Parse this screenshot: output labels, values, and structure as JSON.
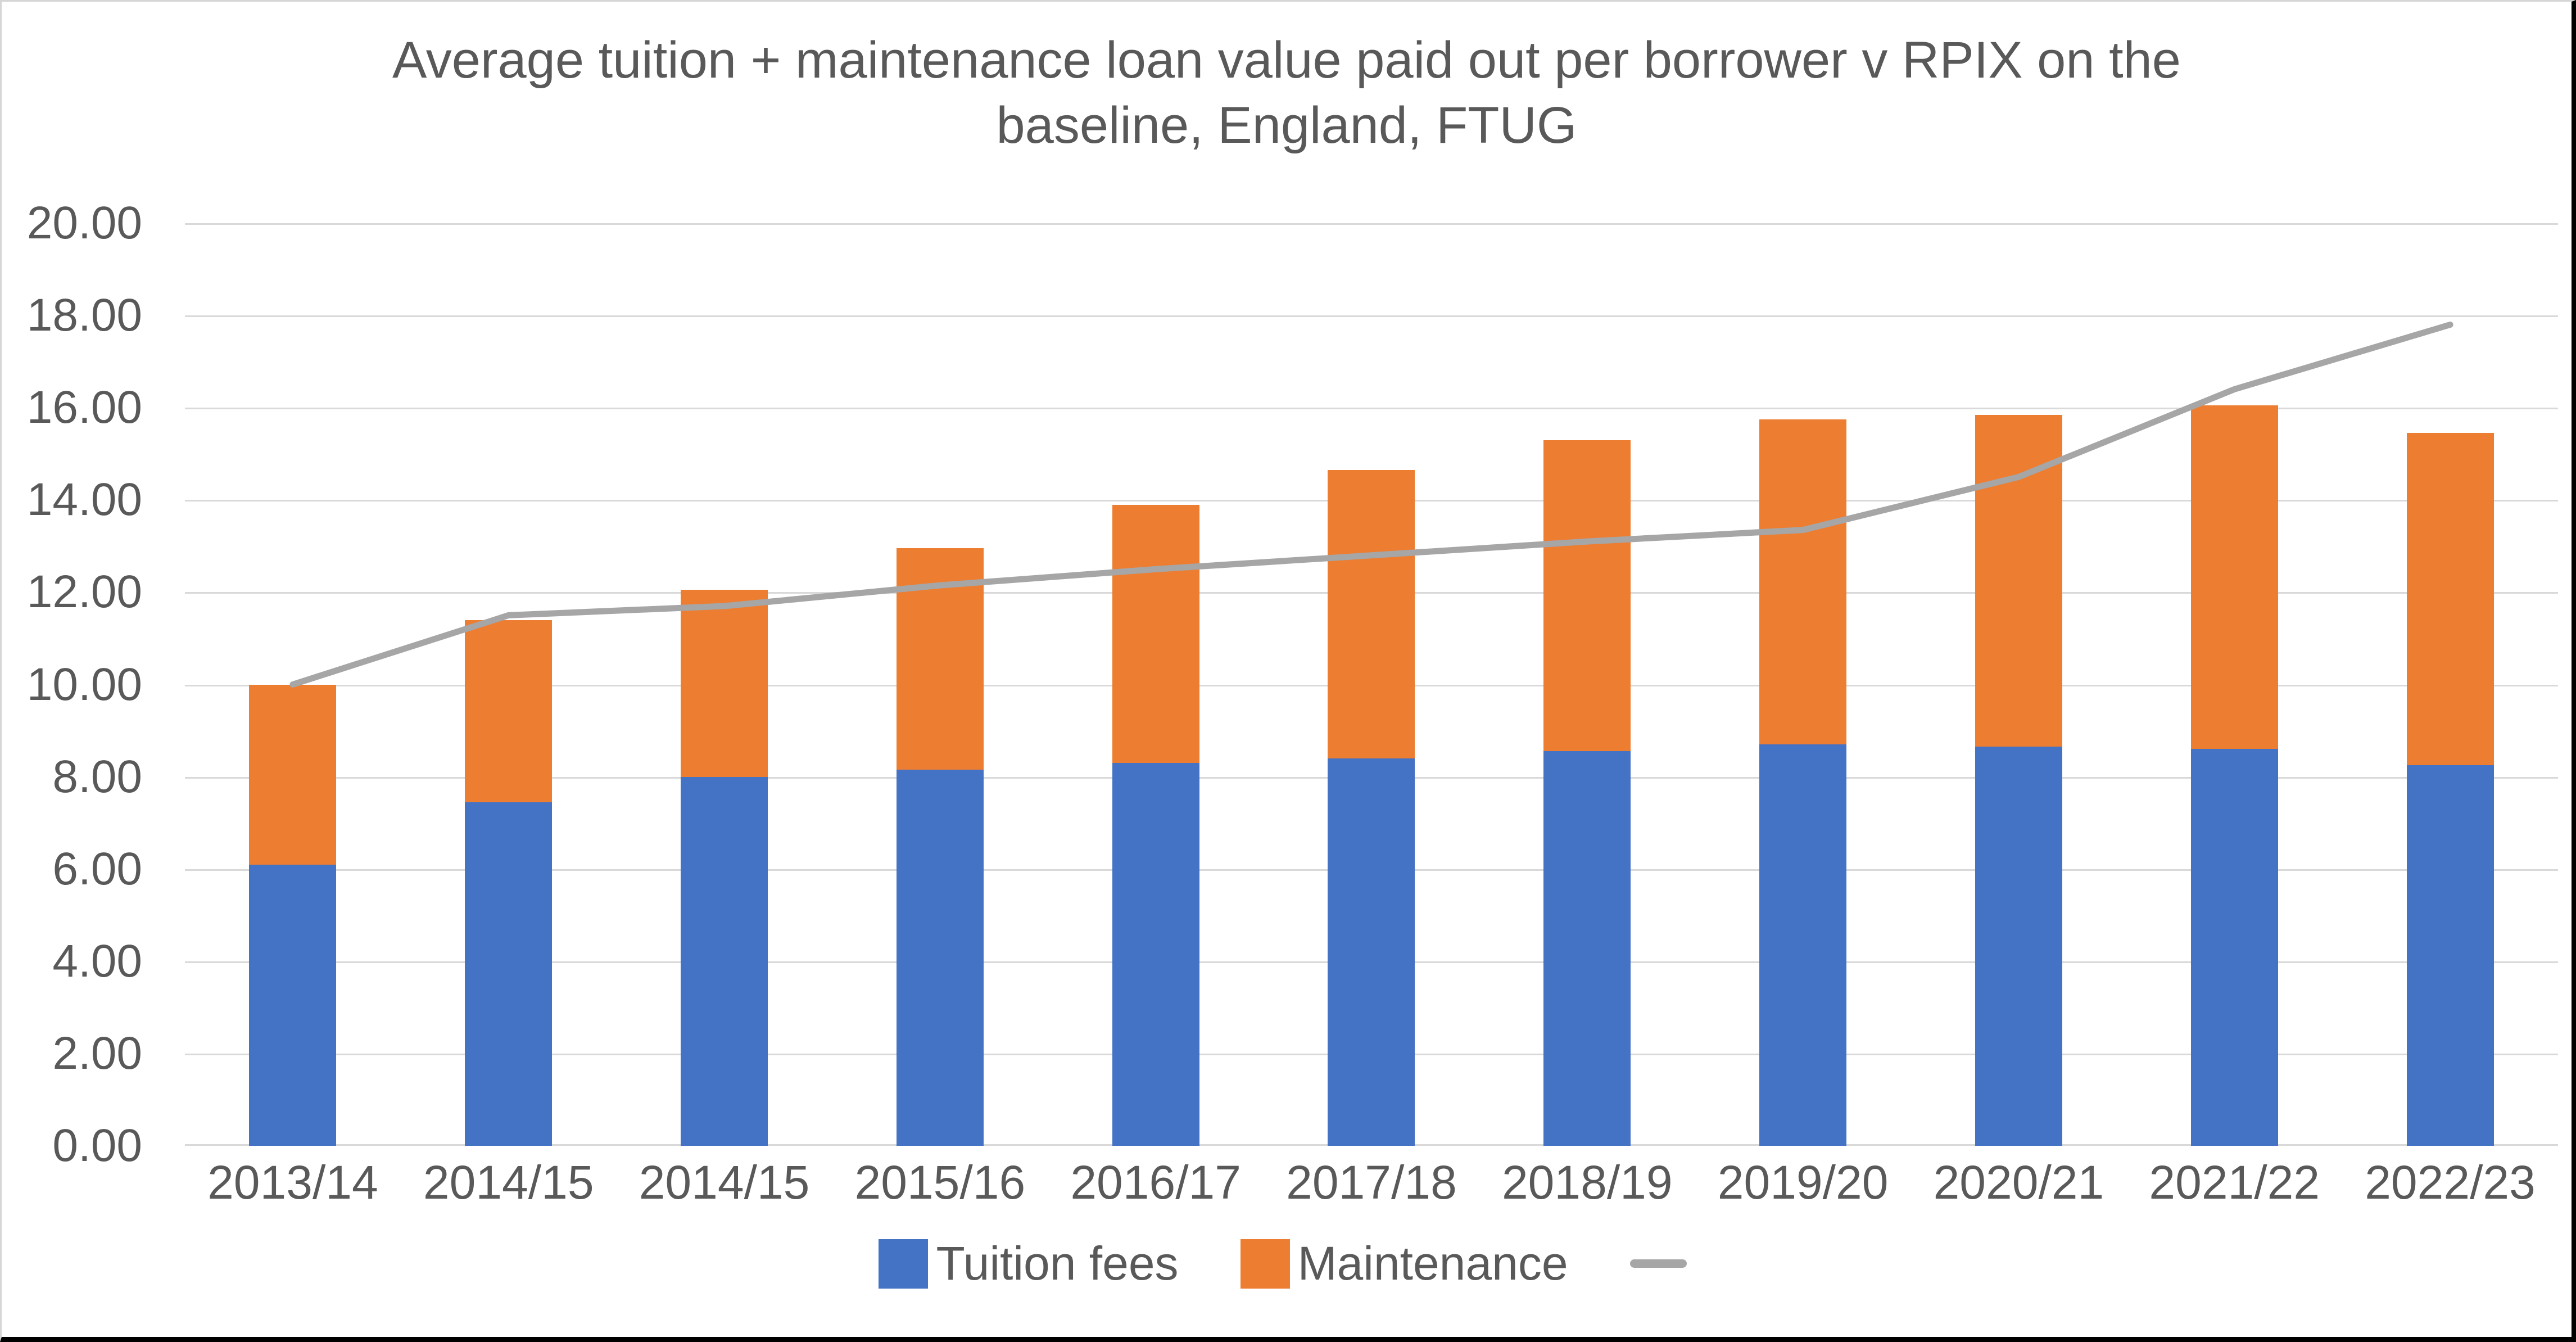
{
  "title": {
    "lines": [
      "Average tuition + maintenance loan value paid out per borrower v RPIX on the",
      "baseline, England, FTUG"
    ],
    "full_text": "Average tuition + maintenance loan value paid out per borrower v RPIX on the baseline, England, FTUG"
  },
  "chart_data": {
    "type": "bar",
    "subtype": "stacked-bar-with-line",
    "categories": [
      "2013/14",
      "2014/15",
      "2014/15",
      "2015/16",
      "2016/17",
      "2017/18",
      "2018/19",
      "2019/20",
      "2020/21",
      "2021/22",
      "2022/23"
    ],
    "series": [
      {
        "name": "Tuition fees",
        "type": "bar",
        "color": "#4472C4",
        "values": [
          6.1,
          7.45,
          8.0,
          8.15,
          8.3,
          8.4,
          8.55,
          8.7,
          8.65,
          8.6,
          8.25
        ]
      },
      {
        "name": "Maintenance",
        "type": "bar",
        "color": "#ED7D31",
        "values": [
          3.9,
          3.95,
          4.05,
          4.8,
          5.6,
          6.25,
          6.75,
          7.05,
          7.2,
          7.45,
          7.2
        ]
      },
      {
        "name": "",
        "type": "line",
        "color": "#A6A6A6",
        "values": [
          10.0,
          11.5,
          11.7,
          12.15,
          12.5,
          12.8,
          13.1,
          13.35,
          14.5,
          16.4,
          17.8
        ]
      }
    ],
    "stacked_totals": [
      10.0,
      11.4,
      12.05,
      12.95,
      13.9,
      14.65,
      15.3,
      15.75,
      15.85,
      16.05,
      15.45
    ],
    "title": "Average tuition + maintenance loan value paid out per borrower v RPIX on the baseline, England, FTUG",
    "xlabel": "",
    "ylabel": "",
    "ylim": [
      0,
      20
    ],
    "ytick_step": 2,
    "ytick_labels": [
      "0.00",
      "2.00",
      "4.00",
      "6.00",
      "8.00",
      "10.00",
      "12.00",
      "14.00",
      "16.00",
      "18.00",
      "20.00"
    ],
    "grid": true,
    "legend_position": "bottom"
  },
  "legend": {
    "items": [
      {
        "label": "Tuition fees",
        "swatch": "blue-square"
      },
      {
        "label": "Maintenance",
        "swatch": "orange-square"
      },
      {
        "label": "",
        "swatch": "gray-dash"
      }
    ]
  },
  "colors": {
    "tuition_bar": "#4472C4",
    "maintenance_bar": "#ED7D31",
    "rpix_line": "#A6A6A6",
    "gridline": "#D9D9D9",
    "text": "#595959",
    "background": "#FFFFFF",
    "frame_dark": "#000000",
    "frame_light": "#D6D6D6"
  }
}
